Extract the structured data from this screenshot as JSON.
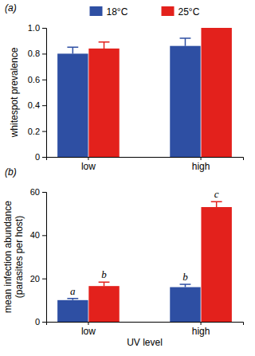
{
  "chart_data": [
    {
      "type": "bar",
      "title": "(a)",
      "categories": [
        "low",
        "high"
      ],
      "series": [
        {
          "name": "18°C",
          "color": "#2e4fa3",
          "values": [
            0.8,
            0.86
          ],
          "errors": [
            0.05,
            0.06
          ]
        },
        {
          "name": "25°C",
          "color": "#e3211c",
          "values": [
            0.84,
            1.0
          ],
          "errors": [
            0.05,
            0
          ]
        }
      ],
      "ylabel": "whitespot prevalence",
      "ylim": [
        0,
        1
      ],
      "yticks": [
        0,
        0.2,
        0.4,
        0.6,
        0.8,
        {
          "value": 1,
          "label": "1.0"
        }
      ],
      "legend": "top",
      "grid": false
    },
    {
      "type": "bar",
      "title": "(b)",
      "categories": [
        "low",
        "high"
      ],
      "series": [
        {
          "color": "#2e4fa3",
          "values": [
            10,
            16
          ],
          "errors": [
            0.8,
            1.3
          ],
          "annotations": [
            "a",
            "b"
          ]
        },
        {
          "color": "#e3211c",
          "values": [
            16.5,
            53
          ],
          "errors": [
            1.8,
            2.5
          ],
          "annotations": [
            "b",
            "c"
          ]
        }
      ],
      "xlabel": "UV level",
      "ylabel": [
        "mean infection abundance",
        "(parasites per host)"
      ],
      "ylim": [
        0,
        60
      ],
      "yticks": [
        0,
        20,
        40,
        60
      ],
      "grid": false
    }
  ]
}
